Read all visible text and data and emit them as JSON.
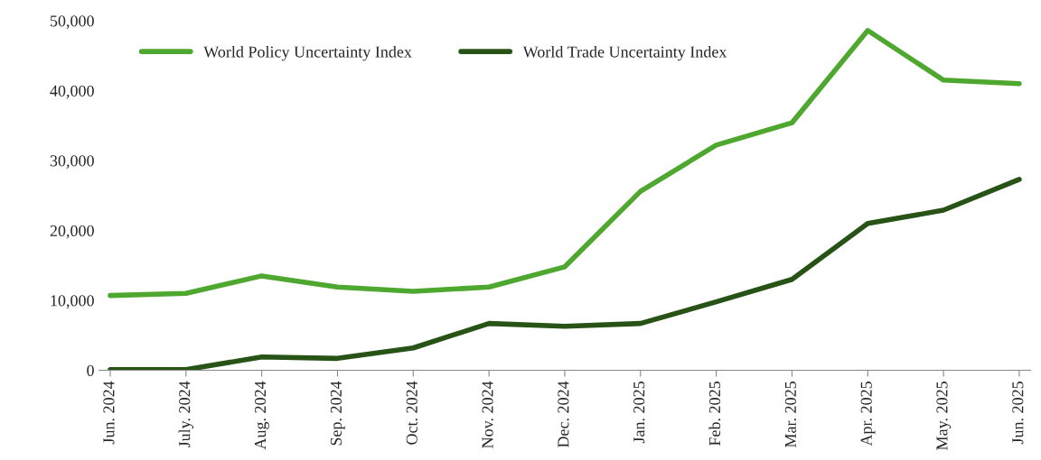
{
  "chart_data": {
    "type": "line",
    "categories": [
      "Jun. 2024",
      "July. 2024",
      "Aug. 2024",
      "Sep. 2024",
      "Oct. 2024",
      "Nov. 2024",
      "Dec. 2024",
      "Jan. 2025",
      "Feb. 2025",
      "Mar. 2025",
      "Apr. 2025",
      "May. 2025",
      "Jun. 2025"
    ],
    "series": [
      {
        "name": "World Policy Uncertainty Index",
        "color": "#4ea72e",
        "values": [
          10700,
          11000,
          13500,
          11900,
          11300,
          11900,
          14800,
          25600,
          32200,
          35400,
          48600,
          41500,
          41000
        ]
      },
      {
        "name": "World Trade Uncertainty Index",
        "color": "#275317",
        "values": [
          100,
          100,
          1900,
          1700,
          3200,
          6700,
          6300,
          6700,
          9800,
          13000,
          21000,
          22900,
          27300
        ]
      }
    ],
    "ylim": [
      0,
      50000
    ],
    "yticks": [
      {
        "value": 0,
        "label": "0"
      },
      {
        "value": 10000,
        "label": "10,000"
      },
      {
        "value": 20000,
        "label": "20,000"
      },
      {
        "value": 30000,
        "label": "30,000"
      },
      {
        "value": 40000,
        "label": "40,000"
      },
      {
        "value": 50000,
        "label": "50,000"
      }
    ],
    "legend": "top left",
    "grid": false,
    "marker": "none",
    "line_style": "solid"
  }
}
